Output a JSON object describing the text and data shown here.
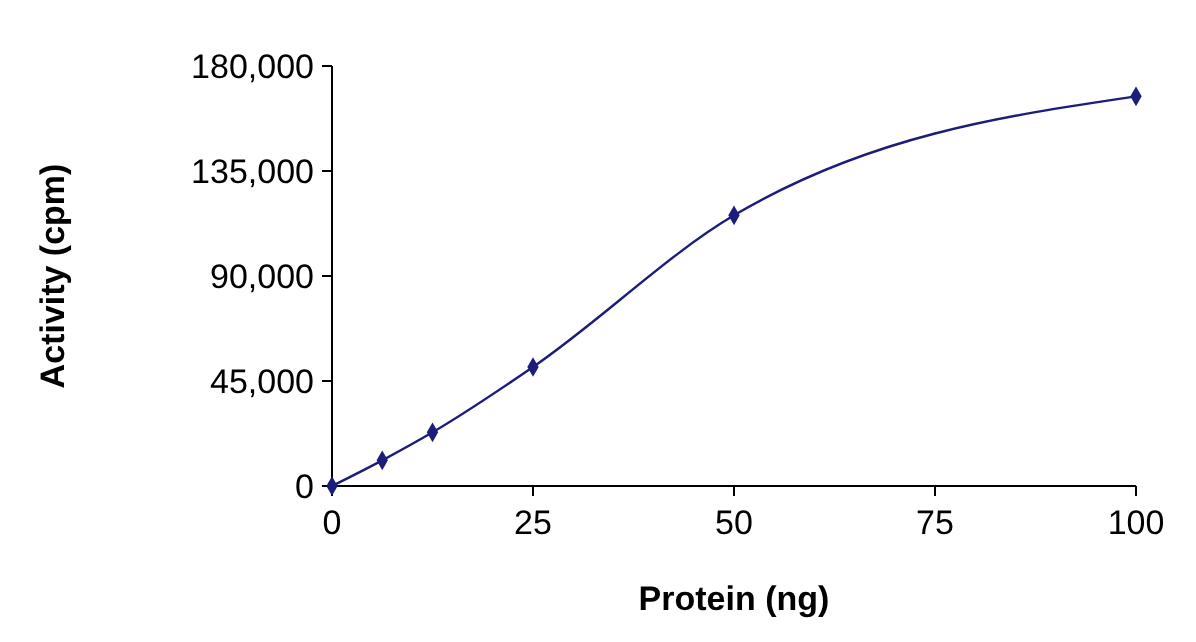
{
  "chart_data": {
    "type": "line",
    "xlabel": "Protein (ng)",
    "ylabel": "Activity (cpm)",
    "x": [
      0,
      6.25,
      12.5,
      25,
      50,
      100
    ],
    "series": [
      {
        "color": "#1c1c7a",
        "values": [
          0,
          11000,
          23000,
          51000,
          116000,
          167000
        ]
      }
    ],
    "xlim": [
      0,
      100
    ],
    "xticks": [
      0,
      25,
      50,
      75,
      100
    ],
    "ylim": [
      0,
      180000
    ],
    "yticks": [
      {
        "value": 0,
        "label": "0"
      },
      {
        "value": 45000,
        "label": "45,000"
      },
      {
        "value": 90000,
        "label": "90,000"
      },
      {
        "value": 135000,
        "label": "135,000"
      },
      {
        "value": 180000,
        "label": "180,000"
      }
    ],
    "grid": false,
    "marker": "diamond",
    "line_style": "solid"
  }
}
